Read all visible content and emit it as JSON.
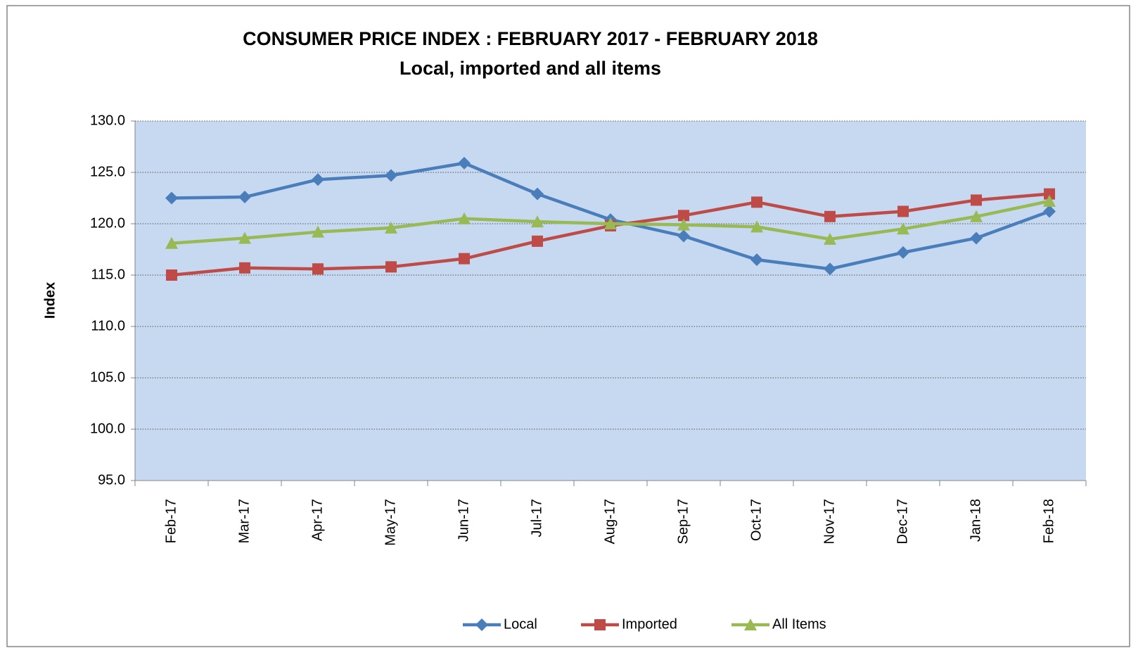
{
  "chart_data": {
    "type": "line",
    "title": "CONSUMER PRICE INDEX : FEBRUARY 2017 - FEBRUARY 2018",
    "subtitle": "Local, imported and all items",
    "y_label": "Index",
    "categories": [
      "Feb-17",
      "Mar-17",
      "Apr-17",
      "May-17",
      "Jun-17",
      "Jul-17",
      "Aug-17",
      "Sep-17",
      "Oct-17",
      "Nov-17",
      "Dec-17",
      "Jan-18",
      "Feb-18"
    ],
    "series": [
      {
        "name": "Local",
        "color": "#4a7ebb",
        "marker": "diamond",
        "values": [
          122.5,
          122.6,
          124.3,
          124.7,
          125.9,
          122.9,
          120.4,
          118.8,
          116.5,
          115.6,
          117.2,
          118.6,
          121.2
        ]
      },
      {
        "name": "Imported",
        "color": "#be4b48",
        "marker": "square",
        "values": [
          115.0,
          115.7,
          115.6,
          115.8,
          116.6,
          118.3,
          119.8,
          120.8,
          122.1,
          120.7,
          121.2,
          122.3,
          122.9
        ]
      },
      {
        "name": "All Items",
        "color": "#98b954",
        "marker": "triangle",
        "values": [
          118.1,
          118.6,
          119.2,
          119.6,
          120.5,
          120.2,
          120.0,
          119.9,
          119.7,
          118.5,
          119.5,
          120.7,
          122.2
        ]
      }
    ],
    "ylim": [
      95,
      130
    ],
    "yticks": [
      {
        "value": 95,
        "label": "95.0"
      },
      {
        "value": 100,
        "label": "100.0"
      },
      {
        "value": 105,
        "label": "105.0"
      },
      {
        "value": 110,
        "label": "110.0"
      },
      {
        "value": 115,
        "label": "115.0"
      },
      {
        "value": 120,
        "label": "120.0"
      },
      {
        "value": 125,
        "label": "125.0"
      },
      {
        "value": 130,
        "label": "130.0"
      }
    ],
    "grid": true,
    "legend": "bottom",
    "plot_background": "#c6d9f1"
  }
}
